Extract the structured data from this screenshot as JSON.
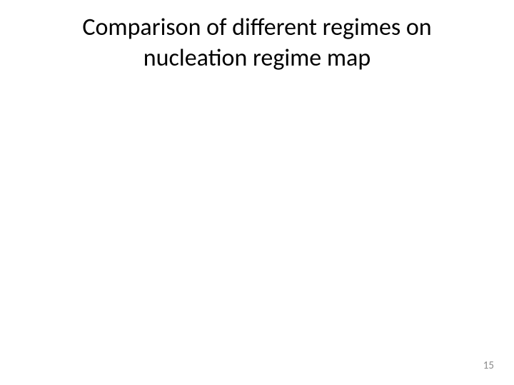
{
  "slide": {
    "title_line1": "Comparison of different regimes on",
    "title_line2": "nucleation regime map",
    "page_number": "15"
  },
  "styling": {
    "background_color": "#ffffff",
    "title_color": "#000000",
    "title_fontsize": 34,
    "title_fontweight": 400,
    "page_number_color": "#8b8b8b",
    "page_number_fontsize": 15,
    "font_family": "Calibri"
  }
}
